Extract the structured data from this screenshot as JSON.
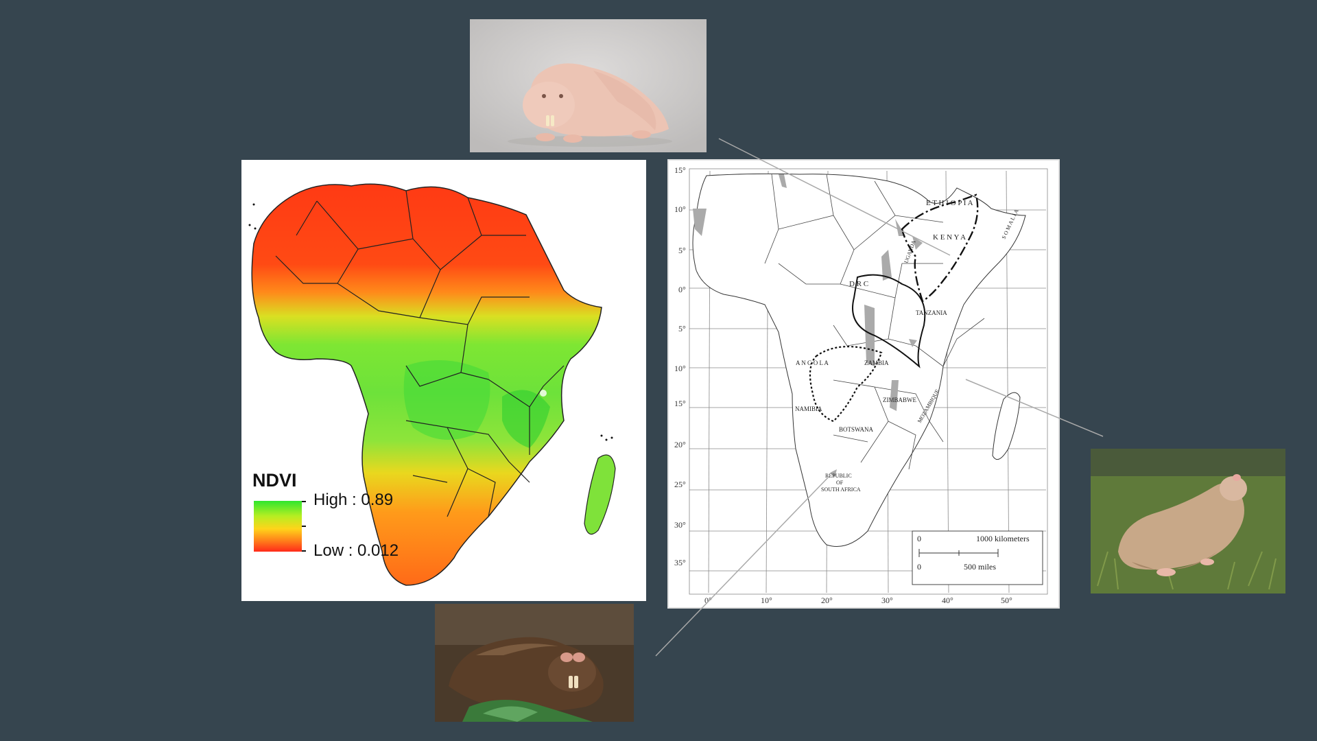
{
  "ndvi_legend": {
    "title": "NDVI",
    "high_label": "High : 0.89",
    "low_label": "Low : 0.012",
    "colors": {
      "high": "#2ee62e",
      "mid": "#ffd41a",
      "low": "#ff2a1a"
    }
  },
  "range_map": {
    "lat_labels": [
      "15°",
      "10°",
      "5°",
      "0°",
      "5°",
      "10°",
      "15°",
      "20°",
      "25°",
      "30°",
      "35°"
    ],
    "lon_labels": [
      "0°",
      "10°",
      "20°",
      "30°",
      "40°",
      "50°"
    ],
    "countries": {
      "ethiopia": "E T H I O P I A",
      "kenya": "K E N Y A",
      "somalia": "S O M A L I A",
      "uganda": "UGANDA",
      "drc": "D R C",
      "tanzania": "TANZANIA",
      "angola": "A N G O L A",
      "zambia": "ZAMBIA",
      "zimbabwe": "ZIMBABWE",
      "mozambique": "MOZAMBIQUE",
      "namibia": "NAMIBIA",
      "botswana": "BOTSWANA",
      "south_africa_1": "REPUBLIC",
      "south_africa_2": "OF",
      "south_africa_3": "SOUTH AFRICA"
    },
    "scale": {
      "km_zero": "0",
      "km_label": "1000 kilometers",
      "mi_zero": "0",
      "mi_label": "500 miles"
    }
  },
  "photos": [
    {
      "subject": "naked-mole-rat"
    },
    {
      "subject": "mole-rat-on-grass"
    },
    {
      "subject": "dark-mole-rat"
    }
  ]
}
